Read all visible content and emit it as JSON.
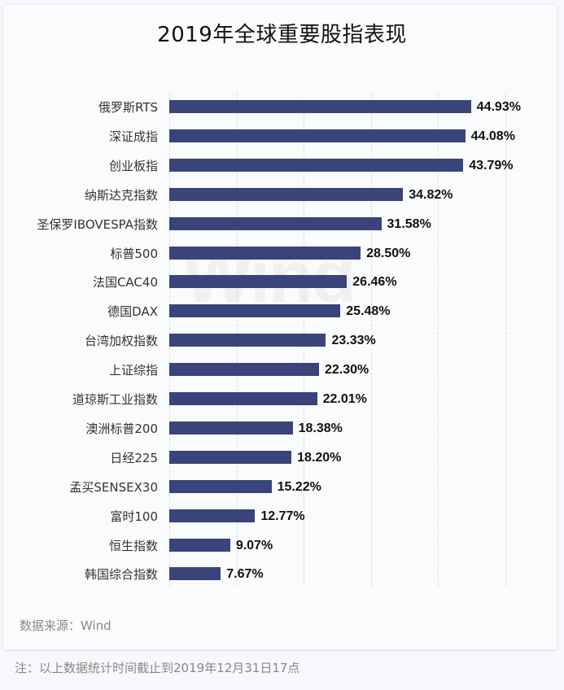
{
  "title": "2019年全球重要股指表现",
  "watermark": "Wind",
  "source": "数据来源：Wind",
  "note": "注：以上数据统计时间截止到2019年12月31日17点",
  "colors": {
    "bar": "#39447a",
    "text": "#111111",
    "label": "#333333",
    "muted": "#888888"
  },
  "rows": [
    {
      "label": "俄罗斯RTS",
      "value": 44.93,
      "text": "44.93%"
    },
    {
      "label": "深证成指",
      "value": 44.08,
      "text": "44.08%"
    },
    {
      "label": "创业板指",
      "value": 43.79,
      "text": "43.79%"
    },
    {
      "label": "纳斯达克指数",
      "value": 34.82,
      "text": "34.82%"
    },
    {
      "label": "圣保罗IBOVESPA指数",
      "value": 31.58,
      "text": "31.58%"
    },
    {
      "label": "标普500",
      "value": 28.5,
      "text": "28.50%"
    },
    {
      "label": "法国CAC40",
      "value": 26.46,
      "text": "26.46%"
    },
    {
      "label": "德国DAX",
      "value": 25.48,
      "text": "25.48%"
    },
    {
      "label": "台湾加权指数",
      "value": 23.33,
      "text": "23.33%"
    },
    {
      "label": "上证综指",
      "value": 22.3,
      "text": "22.30%"
    },
    {
      "label": "道琼斯工业指数",
      "value": 22.01,
      "text": "22.01%"
    },
    {
      "label": "澳洲标普200",
      "value": 18.38,
      "text": "18.38%"
    },
    {
      "label": "日经225",
      "value": 18.2,
      "text": "18.20%"
    },
    {
      "label": "孟买SENSEX30",
      "value": 15.22,
      "text": "15.22%"
    },
    {
      "label": "富时100",
      "value": 12.77,
      "text": "12.77%"
    },
    {
      "label": "恒生指数",
      "value": 9.07,
      "text": "9.07%"
    },
    {
      "label": "韩国综合指数",
      "value": 7.67,
      "text": "7.67%"
    }
  ],
  "chart_data": {
    "type": "bar",
    "orientation": "horizontal",
    "title": "2019年全球重要股指表现",
    "xlabel": "",
    "ylabel": "",
    "xlim": [
      0,
      50
    ],
    "grid": true,
    "gridlines": [
      0,
      10,
      20,
      30,
      40,
      50
    ],
    "unit": "%",
    "categories": [
      "俄罗斯RTS",
      "深证成指",
      "创业板指",
      "纳斯达克指数",
      "圣保罗IBOVESPA指数",
      "标普500",
      "法国CAC40",
      "德国DAX",
      "台湾加权指数",
      "上证综指",
      "道琼斯工业指数",
      "澳洲标普200",
      "日经225",
      "孟买SENSEX30",
      "富时100",
      "恒生指数",
      "韩国综合指数"
    ],
    "values": [
      44.93,
      44.08,
      43.79,
      34.82,
      31.58,
      28.5,
      26.46,
      25.48,
      23.33,
      22.3,
      22.01,
      18.38,
      18.2,
      15.22,
      12.77,
      9.07,
      7.67
    ],
    "data_labels": [
      "44.93%",
      "44.08%",
      "43.79%",
      "34.82%",
      "31.58%",
      "28.50%",
      "26.46%",
      "25.48%",
      "23.33%",
      "22.30%",
      "22.01%",
      "18.38%",
      "18.20%",
      "15.22%",
      "12.77%",
      "9.07%",
      "7.67%"
    ],
    "legend": null,
    "annotations": [
      "数据来源：Wind",
      "注：以上数据统计时间截止到2019年12月31日17点"
    ]
  }
}
